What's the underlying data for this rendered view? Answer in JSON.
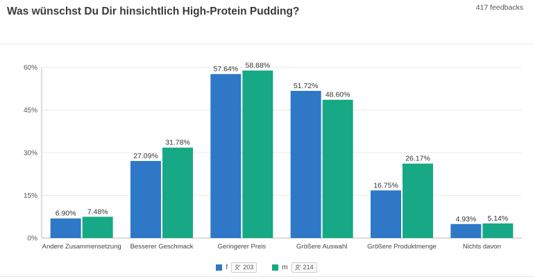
{
  "header": {
    "title": "Was wünschst Du Dir hinsichtlich High-Protein Pudding?",
    "feedback_count": "417 feedbacks"
  },
  "colors": {
    "f": "#2e78c7",
    "m": "#17a985",
    "grid": "#e8e8e8",
    "axis": "#bbbbbb"
  },
  "legend": [
    {
      "name": "f",
      "count": "203",
      "icon": "person-icon"
    },
    {
      "name": "m",
      "count": "214",
      "icon": "person-icon"
    }
  ],
  "chart_data": {
    "type": "bar",
    "categories": [
      "Andere Zusammensetzung",
      "Besserer Geschmack",
      "Geringerer Preis",
      "Größere Auswahl",
      "Größere Produktmenge",
      "Nichts davon"
    ],
    "series": [
      {
        "name": "f",
        "values": [
          6.9,
          27.09,
          57.64,
          51.72,
          16.75,
          4.93
        ],
        "labels": [
          "6.90%",
          "27.09%",
          "57.64%",
          "51.72%",
          "16.75%",
          "4.93%"
        ]
      },
      {
        "name": "m",
        "values": [
          7.48,
          31.78,
          58.88,
          48.6,
          26.17,
          5.14
        ],
        "labels": [
          "7.48%",
          "31.78%",
          "58.88%",
          "48.60%",
          "26.17%",
          "5.14%"
        ]
      }
    ],
    "yticks": [
      0,
      15,
      30,
      45,
      60
    ],
    "ytick_labels": [
      "0%",
      "15%",
      "30%",
      "45%",
      "60%"
    ],
    "ylim": [
      0,
      60
    ],
    "grid": true,
    "legend_position": "bottom-center"
  }
}
